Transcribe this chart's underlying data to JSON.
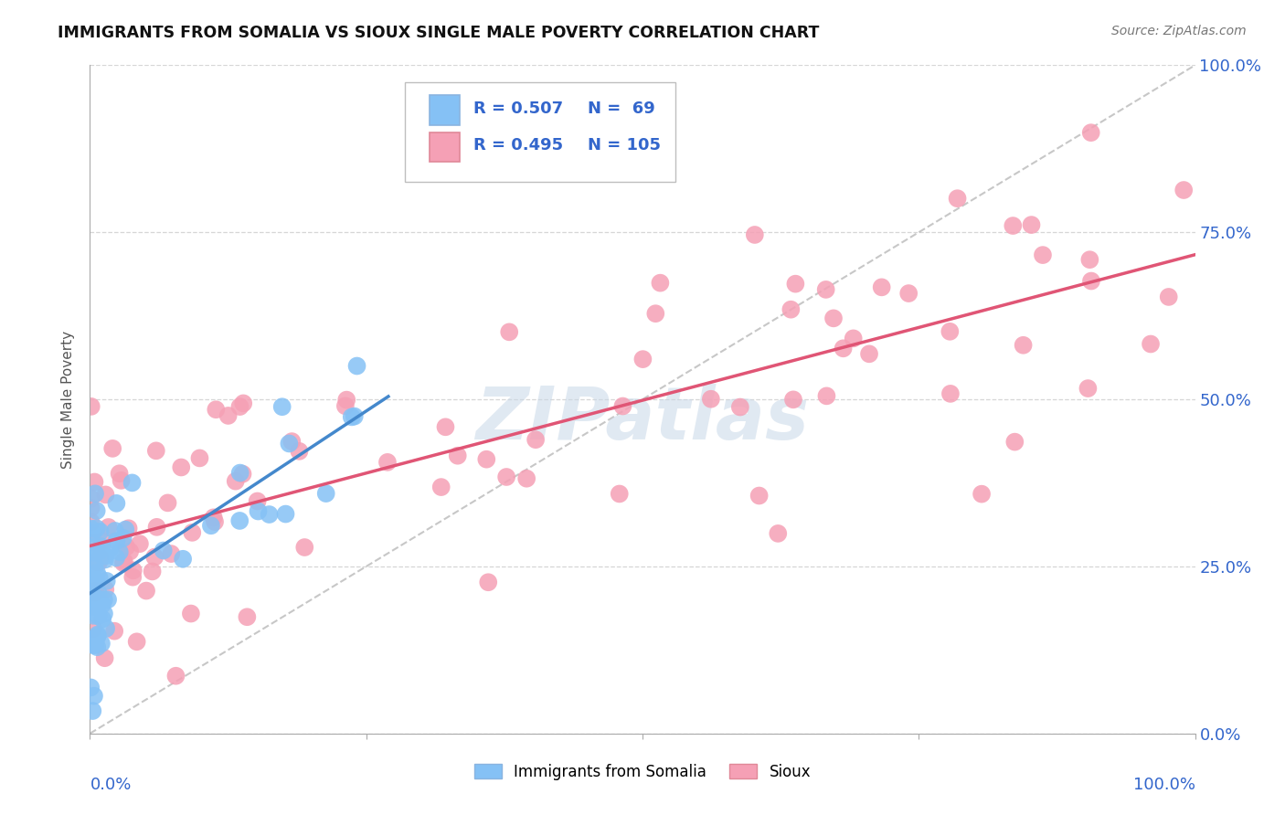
{
  "title": "IMMIGRANTS FROM SOMALIA VS SIOUX SINGLE MALE POVERTY CORRELATION CHART",
  "source": "Source: ZipAtlas.com",
  "ylabel": "Single Male Poverty",
  "ytick_labels": [
    "0.0%",
    "25.0%",
    "50.0%",
    "75.0%",
    "100.0%"
  ],
  "ytick_positions": [
    0.0,
    0.25,
    0.5,
    0.75,
    1.0
  ],
  "legend_r_somalia": "R = 0.507",
  "legend_n_somalia": "N =  69",
  "legend_r_sioux": "R = 0.495",
  "legend_n_sioux": "N = 105",
  "legend_label_somalia": "Immigrants from Somalia",
  "legend_label_sioux": "Sioux",
  "color_somalia": "#85c1f5",
  "color_sioux": "#f5a0b5",
  "color_line_somalia": "#4488cc",
  "color_line_sioux": "#e05575",
  "color_text_blue": "#3366cc",
  "watermark_text": "ZIPatlas",
  "background_color": "#ffffff",
  "grid_color": "#cccccc",
  "xlim": [
    0.0,
    1.0
  ],
  "ylim": [
    0.0,
    1.0
  ],
  "somalia_line_x": [
    0.0,
    0.26
  ],
  "somalia_line_y": [
    0.225,
    0.48
  ],
  "sioux_line_x": [
    0.0,
    1.0
  ],
  "sioux_line_y": [
    0.28,
    0.72
  ],
  "diag_line_x": [
    0.0,
    1.0
  ],
  "diag_line_y": [
    0.0,
    1.0
  ]
}
